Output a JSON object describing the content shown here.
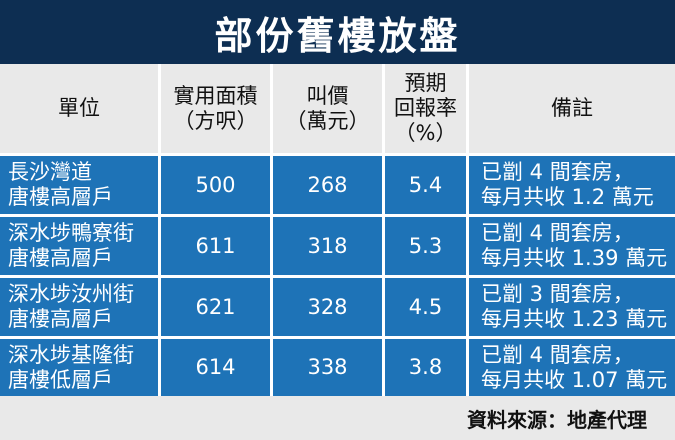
{
  "title": "部份舊樓放盤",
  "headers": [
    "單位",
    "實用面積\n（方呎）",
    "叫價\n（萬元）",
    "預期\n回報率\n（%）",
    "備註"
  ],
  "rows": [
    {
      "unit": "長沙灣道\n唐樓高層戶",
      "area": "500",
      "price": "268",
      "yield": "5.4",
      "note": "已劏 4 間套房，\n每月共收 1.2 萬元"
    },
    {
      "unit": "深水埗鴨寮街\n唐樓高層戶",
      "area": "611",
      "price": "318",
      "yield": "5.3",
      "note": "已劏 4 間套房，\n每月共收 1.39 萬元"
    },
    {
      "unit": "深水埗汝州街\n唐樓高層戶",
      "area": "621",
      "price": "328",
      "yield": "4.5",
      "note": "已劏 3 間套房，\n每月共收 1.23 萬元"
    },
    {
      "unit": "深水埗基隆街\n唐樓低層戶",
      "area": "614",
      "price": "338",
      "yield": "3.8",
      "note": "已劏 4 間套房，\n每月共收 1.07 萬元"
    }
  ],
  "source": "資料來源：地產代理"
}
